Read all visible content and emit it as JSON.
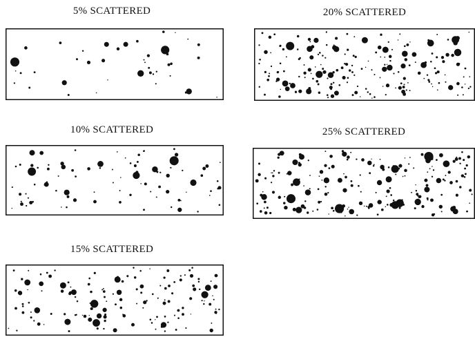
{
  "panels": [
    {
      "id": "p5",
      "label": "5% SCATTERED",
      "fraction": 0.05
    },
    {
      "id": "p20",
      "label": "20% SCATTERED",
      "fraction": 0.2
    },
    {
      "id": "p10",
      "label": "10% SCATTERED",
      "fraction": 0.1
    },
    {
      "id": "p25",
      "label": "25% SCATTERED",
      "fraction": 0.25
    },
    {
      "id": "p15",
      "label": "15% SCATTERED",
      "fraction": 0.15
    }
  ],
  "colors": {
    "ink": "#111111",
    "background": "#ffffff"
  }
}
